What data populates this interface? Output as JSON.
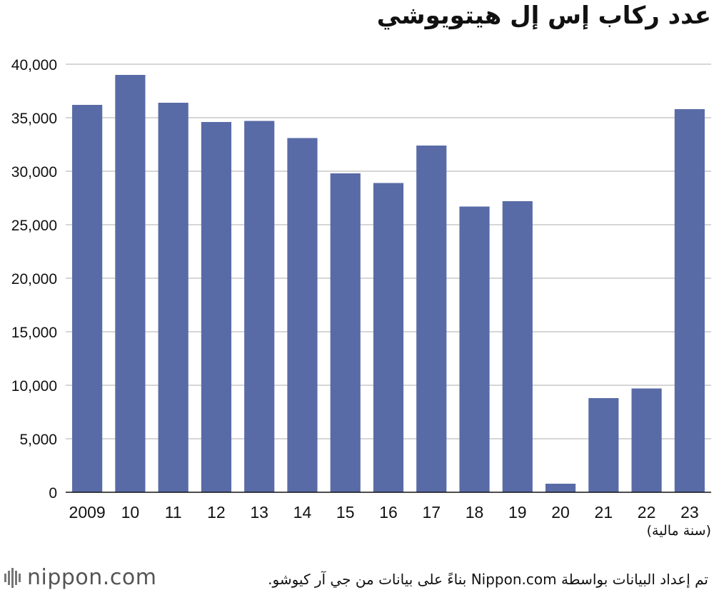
{
  "chart_data": {
    "type": "bar",
    "title": "عدد ركاب إس إل هيتويوشي",
    "xlabel": "(سنة مالية)",
    "ylabel": "",
    "categories": [
      "2009",
      "10",
      "11",
      "12",
      "13",
      "14",
      "15",
      "16",
      "17",
      "18",
      "19",
      "20",
      "21",
      "22",
      "23"
    ],
    "values": [
      36200,
      39000,
      36400,
      34600,
      34700,
      33100,
      29800,
      28900,
      32400,
      26700,
      27200,
      800,
      8800,
      9700,
      35800
    ],
    "ylim": [
      0,
      40000
    ],
    "yticks": [
      0,
      5000,
      10000,
      15000,
      20000,
      25000,
      30000,
      35000,
      40000
    ],
    "ytick_labels": [
      "0",
      "5,000",
      "10,000",
      "15,000",
      "20,000",
      "25,000",
      "30,000",
      "35,000",
      "40,000"
    ],
    "bar_color": "#596ba6",
    "grid": true
  },
  "footer": {
    "source": "تم إعداد البيانات بواسطة Nippon.com بناءً على بيانات من جي آر كيوشو.",
    "logo": "nippon.com"
  }
}
